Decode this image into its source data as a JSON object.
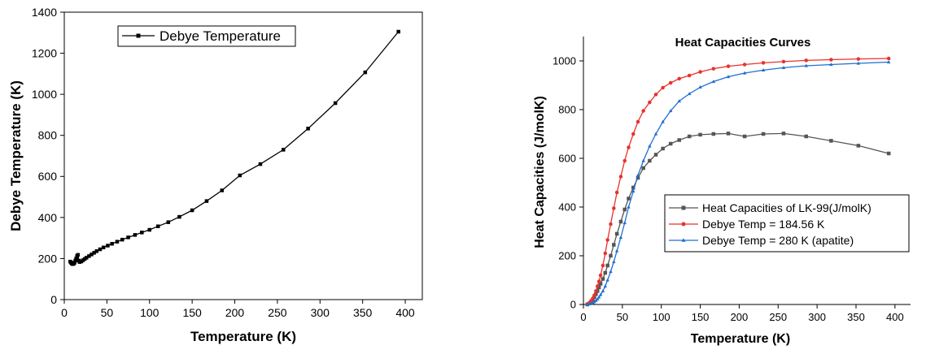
{
  "chart_data": [
    {
      "type": "line",
      "title": "",
      "xlabel": "Temperature (K)",
      "ylabel": "Debye Temperature (K)",
      "xlim": [
        0,
        420
      ],
      "ylim": [
        0,
        1400
      ],
      "xticks": [
        0,
        50,
        100,
        150,
        200,
        250,
        300,
        350,
        400
      ],
      "yticks": [
        0,
        200,
        400,
        600,
        800,
        1000,
        1200,
        1400
      ],
      "grid": false,
      "legend_position": "top-center",
      "series": [
        {
          "name": "Debye Temperature",
          "color": "#000000",
          "marker": "square",
          "x": [
            7,
            8,
            9,
            10,
            11,
            12,
            13,
            14,
            15,
            16,
            17,
            18,
            20,
            22,
            24,
            26,
            29,
            32,
            35,
            38,
            42,
            46,
            51,
            56,
            62,
            68,
            75,
            83,
            91,
            100,
            110,
            122,
            135,
            150,
            167,
            185,
            206,
            230,
            257,
            286,
            318,
            353,
            392
          ],
          "y": [
            185,
            180,
            175,
            173,
            175,
            180,
            190,
            200,
            212,
            218,
            190,
            183,
            186,
            192,
            198,
            204,
            212,
            220,
            228,
            236,
            245,
            254,
            263,
            272,
            282,
            292,
            303,
            315,
            327,
            340,
            357,
            377,
            403,
            435,
            480,
            532,
            605,
            660,
            730,
            833,
            957,
            1107,
            1305
          ]
        }
      ]
    },
    {
      "type": "line",
      "title": "Heat Capacities Curves",
      "xlabel": "Temperature (K)",
      "ylabel": "Heat Capacities (J/molK)",
      "xlim": [
        0,
        420
      ],
      "ylim": [
        0,
        1100
      ],
      "xticks": [
        0,
        50,
        100,
        150,
        200,
        250,
        300,
        350,
        400
      ],
      "yticks": [
        0,
        200,
        400,
        600,
        800,
        1000
      ],
      "grid": false,
      "legend_position": "lower-right",
      "series": [
        {
          "name": "Heat Capacities of LK-99(J/molK)",
          "color": "#555555",
          "marker": "square",
          "x": [
            5,
            8,
            10,
            12,
            14,
            16,
            18,
            20,
            22,
            25,
            28,
            31,
            35,
            39,
            43,
            48,
            53,
            58,
            64,
            70,
            77,
            85,
            93,
            102,
            112,
            123,
            136,
            150,
            167,
            186,
            207,
            231,
            257,
            286,
            318,
            353,
            392
          ],
          "y": [
            0,
            5,
            12,
            20,
            30,
            42,
            55,
            70,
            85,
            105,
            130,
            160,
            200,
            245,
            290,
            340,
            390,
            435,
            480,
            520,
            560,
            590,
            615,
            640,
            660,
            675,
            690,
            697,
            700,
            702,
            690,
            700,
            702,
            690,
            672,
            652,
            620
          ]
        },
        {
          "name": "Debye Temp = 184.56 K",
          "color": "#e8322d",
          "marker": "circle",
          "x": [
            5,
            8,
            10,
            12,
            14,
            16,
            18,
            20,
            22,
            25,
            28,
            31,
            35,
            39,
            43,
            48,
            53,
            58,
            64,
            70,
            77,
            85,
            93,
            102,
            112,
            123,
            136,
            150,
            167,
            186,
            207,
            231,
            257,
            286,
            318,
            353,
            392
          ],
          "y": [
            2,
            8,
            15,
            25,
            38,
            55,
            75,
            95,
            120,
            160,
            210,
            265,
            330,
            395,
            460,
            525,
            590,
            645,
            700,
            750,
            795,
            830,
            862,
            890,
            910,
            927,
            940,
            955,
            968,
            978,
            985,
            992,
            997,
            1002,
            1005,
            1008,
            1010
          ]
        },
        {
          "name": "Debye Temp = 280 K (apatite)",
          "color": "#1f6fd1",
          "marker": "triangle",
          "x": [
            5,
            8,
            10,
            12,
            14,
            16,
            18,
            20,
            22,
            25,
            28,
            31,
            35,
            39,
            43,
            48,
            53,
            58,
            64,
            70,
            77,
            85,
            93,
            102,
            112,
            123,
            136,
            150,
            167,
            186,
            207,
            231,
            257,
            286,
            318,
            353,
            392
          ],
          "y": [
            0,
            2,
            4,
            7,
            11,
            16,
            22,
            30,
            40,
            55,
            75,
            100,
            135,
            175,
            220,
            275,
            335,
            400,
            465,
            530,
            590,
            650,
            700,
            750,
            795,
            835,
            865,
            892,
            915,
            935,
            950,
            962,
            972,
            980,
            985,
            990,
            995
          ]
        }
      ]
    }
  ]
}
